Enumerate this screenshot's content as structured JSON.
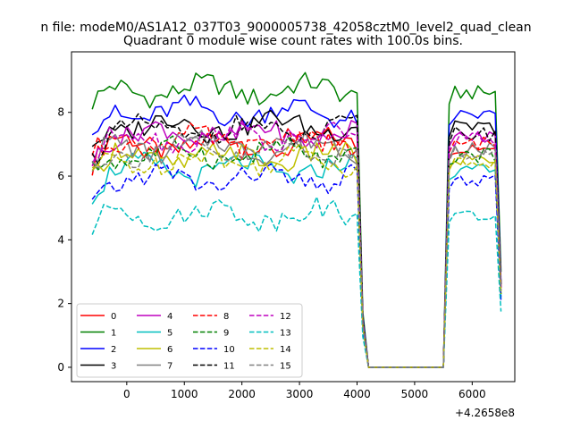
{
  "figure": {
    "suptitle": "n file: modeM0/AS1A12_037T03_9000005738_42058cztM0_level2_quad_clean"
  },
  "chart_data": {
    "type": "line",
    "title": "Quadrant 0 module wise count rates with 100.0s bins.",
    "xlabel": "",
    "ylabel": "",
    "x_offset_label": "+4.2658e8",
    "xlim": [
      -960,
      6740
    ],
    "ylim": [
      -0.45,
      9.9
    ],
    "xticks": [
      0,
      1000,
      2000,
      3000,
      4000,
      5000,
      6000
    ],
    "xtick_labels": [
      "0",
      "1000",
      "2000",
      "3000",
      "4000",
      "5000",
      "6000"
    ],
    "yticks": [
      0,
      2,
      4,
      6,
      8
    ],
    "ytick_labels": [
      "0",
      "2",
      "4",
      "6",
      "8"
    ],
    "grid": false,
    "legend": {
      "placement": "lower-left",
      "columns": 4
    },
    "x_segments": [
      {
        "start": -600,
        "end": 4200,
        "step": 100
      },
      {
        "start": 4300,
        "end": 5400,
        "step": 100
      },
      {
        "start": 5500,
        "end": 6500,
        "step": 100
      }
    ],
    "series": [
      {
        "name": "0",
        "color": "#ff0000",
        "dash": "solid",
        "base": 7.0,
        "end_value": 2.5
      },
      {
        "name": "1",
        "color": "#008000",
        "dash": "solid",
        "base": 8.7,
        "end_value": 3.0
      },
      {
        "name": "2",
        "color": "#0000ff",
        "dash": "solid",
        "base": 8.0,
        "end_value": 2.7
      },
      {
        "name": "3",
        "color": "#000000",
        "dash": "solid",
        "base": 7.6,
        "end_value": 2.6
      },
      {
        "name": "4",
        "color": "#bf00bf",
        "dash": "solid",
        "base": 7.3,
        "end_value": 2.5
      },
      {
        "name": "5",
        "color": "#00bfbf",
        "dash": "solid",
        "base": 6.2,
        "end_value": 2.2
      },
      {
        "name": "6",
        "color": "#bfbf00",
        "dash": "solid",
        "base": 6.6,
        "end_value": 2.3
      },
      {
        "name": "7",
        "color": "#808080",
        "dash": "solid",
        "base": 6.9,
        "end_value": 2.4
      },
      {
        "name": "8",
        "color": "#ff0000",
        "dash": "dashed",
        "base": 7.1,
        "end_value": 2.5
      },
      {
        "name": "9",
        "color": "#008000",
        "dash": "dashed",
        "base": 6.7,
        "end_value": 2.3
      },
      {
        "name": "10",
        "color": "#0000ff",
        "dash": "dashed",
        "base": 5.9,
        "end_value": 2.1
      },
      {
        "name": "11",
        "color": "#000000",
        "dash": "dashed",
        "base": 7.4,
        "end_value": 2.6
      },
      {
        "name": "12",
        "color": "#bf00bf",
        "dash": "dashed",
        "base": 7.2,
        "end_value": 2.5
      },
      {
        "name": "13",
        "color": "#00bfbf",
        "dash": "dashed",
        "base": 4.8,
        "end_value": 1.75
      },
      {
        "name": "14",
        "color": "#bfbf00",
        "dash": "dashed",
        "base": 6.5,
        "end_value": 2.3
      },
      {
        "name": "15",
        "color": "#808080",
        "dash": "dashed",
        "base": 6.8,
        "end_value": 2.4
      }
    ]
  }
}
